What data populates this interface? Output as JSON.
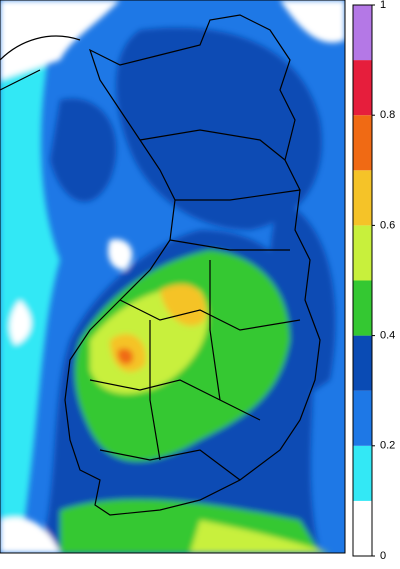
{
  "colorbar": {
    "lim": [
      0,
      1
    ],
    "bins": [
      0,
      0.1,
      0.2,
      0.3,
      0.4,
      0.5,
      0.6,
      0.7,
      0.8,
      0.9,
      1
    ],
    "colors": [
      "#ffffff",
      "#33e8f5",
      "#1e78e6",
      "#0a4bb4",
      "#34c832",
      "#c8f03c",
      "#f5c328",
      "#f06a14",
      "#e61e3c",
      "#b478e6"
    ],
    "ticks": [
      0,
      0.2,
      0.4,
      0.6,
      0.8,
      1
    ]
  }
}
